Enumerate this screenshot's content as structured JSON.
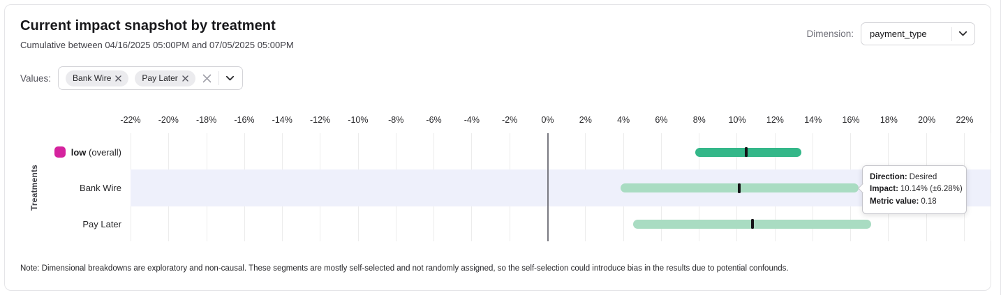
{
  "card": {
    "title": "Current impact snapshot by treatment",
    "subtitle": "Cumulative between 04/16/2025 05:00PM and 07/05/2025 05:00PM",
    "note": "Note: Dimensional breakdowns are exploratory and non-causal. These segments are mostly self-selected and not randomly assigned, so the self-selection could introduce bias in the results due to potential confounds."
  },
  "dimension": {
    "label": "Dimension:",
    "selected": "payment_type"
  },
  "values_filter": {
    "label": "Values:",
    "chips": [
      "Bank Wire",
      "Pay Later"
    ]
  },
  "chart_data": {
    "type": "bar",
    "subtype": "horizontal-interval",
    "ylabel": "Treatments",
    "xlim": [
      -22,
      23.4
    ],
    "ticks": [
      -22,
      -20,
      -18,
      -16,
      -14,
      -12,
      -10,
      -8,
      -6,
      -4,
      -2,
      0,
      2,
      4,
      6,
      8,
      10,
      12,
      14,
      16,
      18,
      20,
      22
    ],
    "tick_suffix": "%",
    "zero_line": 0,
    "grid": true,
    "rows": [
      {
        "label": "low",
        "suffix": " (overall)",
        "swatch_color": "#d5239e",
        "bar_color": "#34b789",
        "from": 7.8,
        "to": 13.4,
        "center": 10.5,
        "highlighted": false
      },
      {
        "label": "Bank Wire",
        "suffix": "",
        "swatch_color": "",
        "bar_color": "#a9dcc2",
        "from": 3.86,
        "to": 16.42,
        "center": 10.14,
        "highlighted": true
      },
      {
        "label": "Pay Later",
        "suffix": "",
        "swatch_color": "",
        "bar_color": "#a9dcc2",
        "from": 4.55,
        "to": 17.1,
        "center": 10.85,
        "highlighted": false
      }
    ]
  },
  "tooltip": {
    "direction_label": "Direction:",
    "direction_value": "Desired",
    "impact_label": "Impact:",
    "impact_value": "10.14% (±6.28%)",
    "metric_label": "Metric value:",
    "metric_value": "0.18"
  },
  "colors": {
    "highlight_band": "#eef0fb",
    "gridline": "#ececec",
    "zero_line": "#7a7a82",
    "marker": "#141417"
  }
}
